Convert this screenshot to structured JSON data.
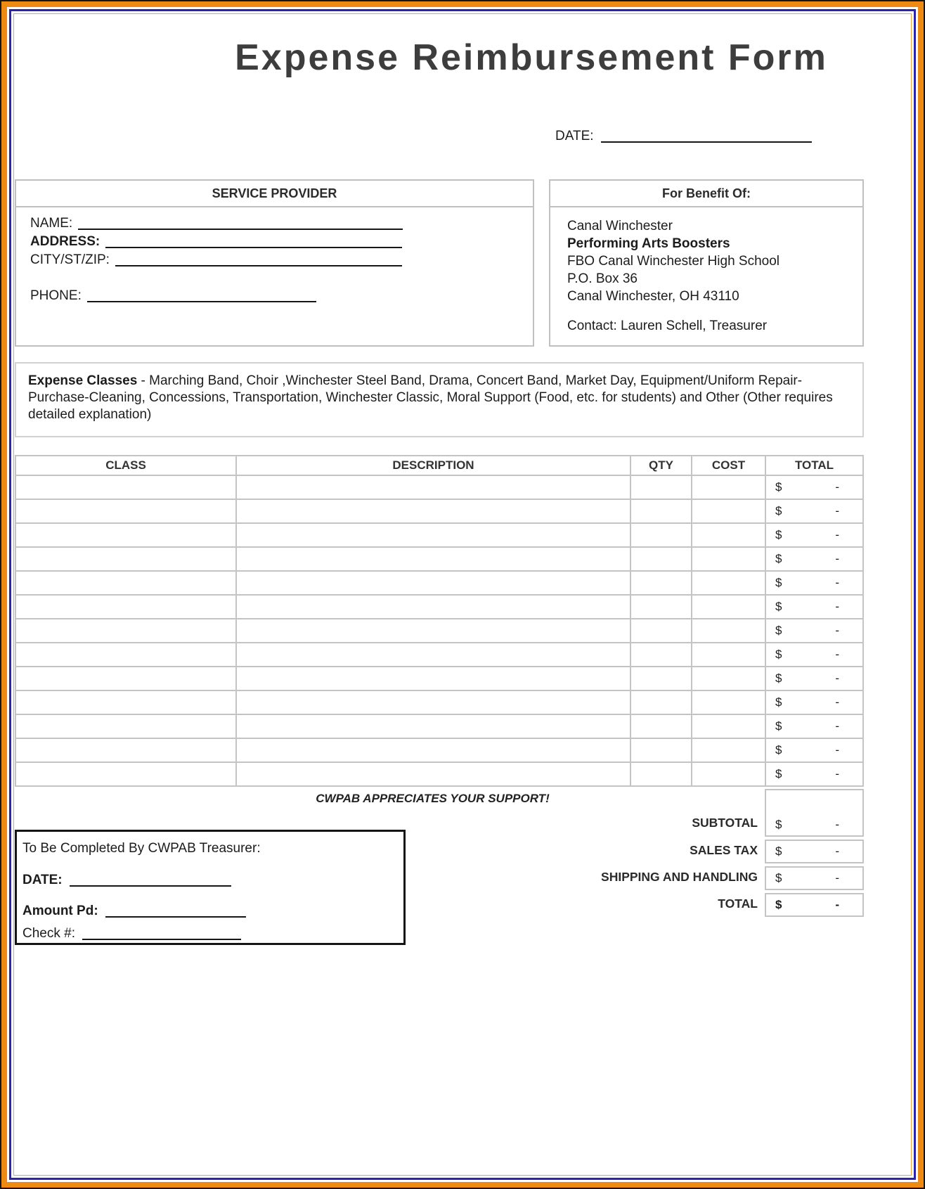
{
  "title": "Expense Reimbursement Form",
  "date": {
    "label": "DATE:"
  },
  "service_provider": {
    "header": "SERVICE PROVIDER",
    "fields": [
      {
        "label": "NAME:"
      },
      {
        "label": "ADDRESS:"
      },
      {
        "label": "CITY/ST/ZIP:"
      },
      {
        "label": "PHONE:"
      }
    ]
  },
  "benefit": {
    "header": "For Benefit Of:",
    "lines": [
      "Canal Winchester",
      "Performing Arts Boosters",
      "FBO Canal Winchester High School",
      "P.O. Box 36",
      "Canal Winchester, OH 43110"
    ],
    "contact": "Contact: Lauren Schell, Treasurer"
  },
  "expense_classes": {
    "label": "Expense Classes",
    "text": "- Marching Band,  Choir ,Winchester Steel Band, Drama, Concert Band, Market Day, Equipment/Uniform Repair-Purchase-Cleaning, Concessions, Transportation, Winchester Classic, Moral Support (Food, etc. for students) and Other (Other requires detailed explanation)"
  },
  "expense_table": {
    "headers": [
      "CLASS",
      "DESCRIPTION",
      "QTY",
      "COST",
      "TOTAL"
    ],
    "row_count": 13,
    "currency_symbol": "$",
    "empty_amount": "-"
  },
  "support_note": "CWPAB APPRECIATES YOUR SUPPORT!",
  "summary": {
    "rows": [
      {
        "label": "SUBTOTAL",
        "symbol": "$",
        "amount": "-"
      },
      {
        "label": "SALES TAX",
        "symbol": "$",
        "amount": "-"
      },
      {
        "label": "SHIPPING AND HANDLING",
        "symbol": "$",
        "amount": "-"
      },
      {
        "label": "TOTAL",
        "symbol": "$",
        "amount": "-"
      }
    ]
  },
  "treasurer_box": {
    "title": "To Be Completed By CWPAB Treasurer:",
    "fields": [
      {
        "label": "DATE:"
      },
      {
        "label": "Amount Pd:"
      },
      {
        "label": "Check #:"
      }
    ]
  },
  "colors": {
    "border_orange": "#ee8a12",
    "border_blue": "#2b24ae",
    "grid_gray": "#c4c4c4",
    "title_color": "#3d3d3d"
  }
}
